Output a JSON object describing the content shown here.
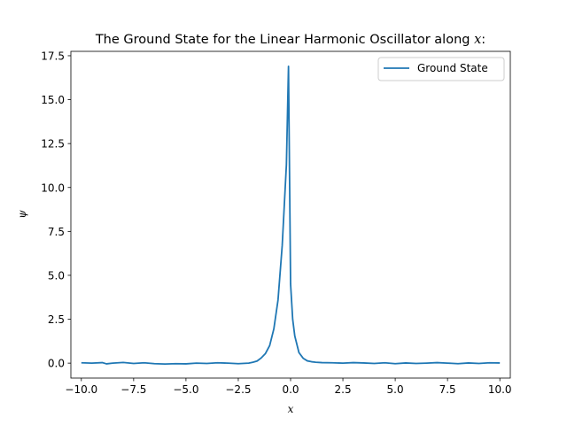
{
  "chart_data": {
    "type": "line",
    "title_main": "The Ground State for the Linear Harmonic Oscillator along ",
    "title_var": "x",
    "title_end": ":",
    "xlabel": "x",
    "ylabel": "ψ",
    "xlim": [
      -10.5,
      10.5
    ],
    "ylim": [
      -0.85,
      17.75
    ],
    "xticks": [
      -10.0,
      -7.5,
      -5.0,
      -2.5,
      0.0,
      2.5,
      5.0,
      7.5,
      10.0
    ],
    "xtick_labels": [
      "−10.0",
      "−7.5",
      "−5.0",
      "−2.5",
      "0.0",
      "2.5",
      "5.0",
      "7.5",
      "10.0"
    ],
    "yticks": [
      0.0,
      2.5,
      5.0,
      7.5,
      10.0,
      12.5,
      15.0,
      17.5
    ],
    "ytick_labels": [
      "0.0",
      "2.5",
      "5.0",
      "7.5",
      "10.0",
      "12.5",
      "15.0",
      "17.5"
    ],
    "legend_position": "top-right",
    "grid": false,
    "series": [
      {
        "name": "Ground State",
        "color": "#1f77b4",
        "x": [
          -10.0,
          -9.5,
          -9.0,
          -8.8,
          -8.5,
          -8.0,
          -7.5,
          -7.0,
          -6.5,
          -6.0,
          -5.5,
          -5.0,
          -4.5,
          -4.0,
          -3.5,
          -3.0,
          -2.5,
          -2.0,
          -1.8,
          -1.6,
          -1.4,
          -1.2,
          -1.0,
          -0.8,
          -0.6,
          -0.4,
          -0.2,
          -0.1,
          0.0,
          0.1,
          0.2,
          0.4,
          0.6,
          0.8,
          1.0,
          1.2,
          1.5,
          2.0,
          2.5,
          3.0,
          3.5,
          4.0,
          4.5,
          5.0,
          5.5,
          6.0,
          6.5,
          7.0,
          7.5,
          8.0,
          8.5,
          9.0,
          9.5,
          10.0
        ],
        "y": [
          0.02,
          0.0,
          0.03,
          -0.04,
          0.0,
          0.04,
          -0.02,
          0.02,
          -0.03,
          -0.05,
          -0.03,
          -0.04,
          0.0,
          -0.02,
          0.02,
          0.0,
          -0.03,
          0.0,
          0.05,
          0.12,
          0.3,
          0.55,
          1.0,
          1.95,
          3.6,
          6.7,
          11.3,
          16.9,
          4.5,
          2.5,
          1.55,
          0.6,
          0.28,
          0.13,
          0.08,
          0.05,
          0.03,
          0.02,
          0.0,
          0.03,
          0.01,
          -0.02,
          0.02,
          -0.03,
          0.01,
          -0.02,
          0.0,
          0.03,
          0.0,
          -0.03,
          0.01,
          -0.02,
          0.02,
          0.01
        ]
      }
    ]
  }
}
